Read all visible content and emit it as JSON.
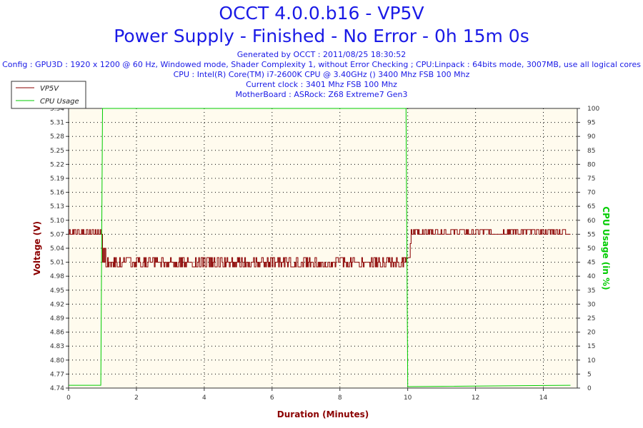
{
  "header": {
    "title": "OCCT 4.0.0.b16 - VP5V",
    "subtitle": "Power Supply - Finished - No Error - 0h 15m 0s",
    "info_lines": [
      "Generated by OCCT : 2011/08/25 18:30:52",
      "Config : GPU3D : 1920 x 1200 @ 60 Hz, Windowed mode, Shader Complexity 1, without Error Checking ; CPU:Linpack : 64bits mode, 3007MB, use all logical cores",
      "CPU : Intel(R) Core(TM) i7-2600K CPU @ 3.40GHz () 3400 Mhz FSB 100 Mhz",
      "Current clock : 3401 Mhz FSB 100 Mhz",
      "MotherBoard : ASRock: Z68 Extreme7 Gen3"
    ]
  },
  "chart_data": {
    "type": "line",
    "xlabel": "Duration (Minutes)",
    "ylabel_left": "Voltage (V)",
    "ylabel_right": "CPU Usage (in %)",
    "xlim": [
      0,
      15
    ],
    "ylim_left": [
      4.74,
      5.34
    ],
    "ylim_right": [
      0,
      100
    ],
    "x_ticks": [
      0,
      2,
      4,
      6,
      8,
      10,
      12,
      14
    ],
    "y_ticks_left": [
      "4.74",
      "4.77",
      "4.80",
      "4.83",
      "4.86",
      "4.89",
      "4.92",
      "4.95",
      "4.98",
      "5.01",
      "5.04",
      "5.07",
      "5.10",
      "5.13",
      "5.16",
      "5.19",
      "5.22",
      "5.25",
      "5.28",
      "5.31",
      "5.34"
    ],
    "y_ticks_right": [
      0,
      5,
      10,
      15,
      20,
      25,
      30,
      35,
      40,
      45,
      50,
      55,
      60,
      65,
      70,
      75,
      80,
      85,
      90,
      95,
      100
    ],
    "grid": true,
    "legend_position": "top-left",
    "series": [
      {
        "name": "VP5V",
        "color": "#8b0000",
        "axis": "left",
        "segments": [
          {
            "x_start": 0.0,
            "x_end": 1.0,
            "levels": [
              5.07,
              5.08
            ]
          },
          {
            "x_start": 1.0,
            "x_end": 1.1,
            "levels": [
              5.04,
              5.01
            ]
          },
          {
            "x_start": 1.1,
            "x_end": 10.0,
            "levels": [
              5.01,
              5.0,
              5.02
            ]
          },
          {
            "x_start": 10.0,
            "x_end": 10.1,
            "levels": [
              5.02,
              5.05
            ]
          },
          {
            "x_start": 10.1,
            "x_end": 14.8,
            "levels": [
              5.07,
              5.08
            ]
          }
        ]
      },
      {
        "name": "CPU Usage",
        "color": "#00cc00",
        "axis": "right",
        "points": [
          [
            0.0,
            1
          ],
          [
            0.95,
            1
          ],
          [
            1.0,
            100
          ],
          [
            9.95,
            100
          ],
          [
            10.0,
            0.5
          ],
          [
            14.8,
            1
          ]
        ]
      }
    ]
  }
}
